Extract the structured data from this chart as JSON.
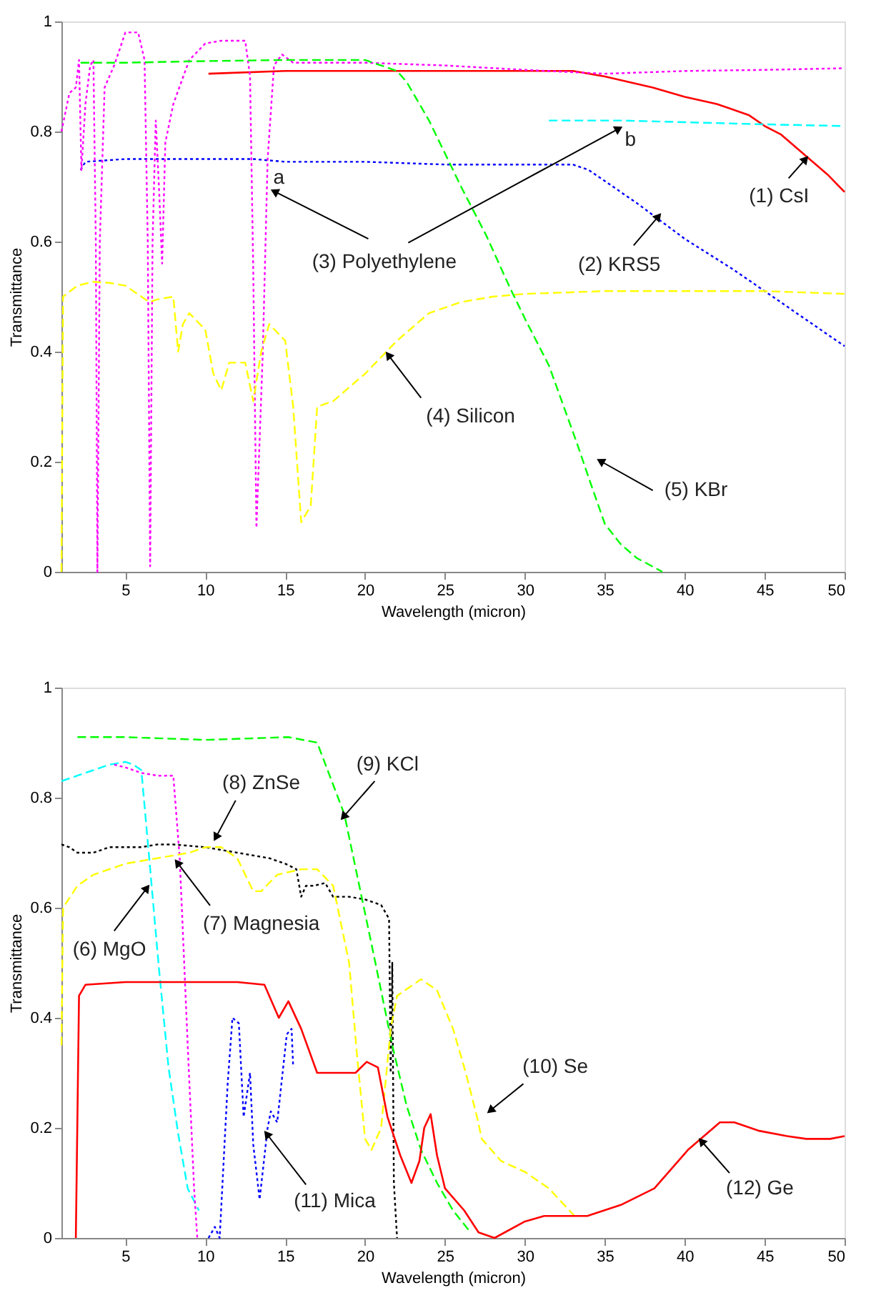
{
  "chart_data": [
    {
      "type": "line",
      "xlabel": "Wavelength (micron)",
      "ylabel": "Transmittance",
      "xlim": [
        1,
        50
      ],
      "ylim": [
        0,
        1
      ],
      "xticks": [
        5,
        10,
        15,
        20,
        25,
        30,
        35,
        40,
        45,
        50
      ],
      "yticks": [
        0,
        0.2,
        0.4,
        0.6,
        0.8,
        1
      ],
      "grid": false,
      "series": [
        {
          "color": "#ff0000",
          "line_style": "solid",
          "x": [
            10.2,
            15,
            33,
            35,
            38,
            40,
            42,
            44,
            45,
            46,
            47,
            48,
            49,
            50
          ],
          "values": [
            0.905,
            0.91,
            0.91,
            0.9,
            0.88,
            0.863,
            0.85,
            0.83,
            0.81,
            0.795,
            0.77,
            0.745,
            0.72,
            0.69
          ]
        },
        {
          "color": "#0000ff",
          "line_style": "dotted",
          "x": [
            2.2,
            2.5,
            5,
            8,
            13,
            15,
            20,
            25,
            30,
            33,
            34,
            35,
            37,
            40,
            43,
            45,
            48,
            50
          ],
          "values": [
            0.73,
            0.745,
            0.75,
            0.75,
            0.75,
            0.745,
            0.745,
            0.74,
            0.74,
            0.74,
            0.73,
            0.71,
            0.67,
            0.605,
            0.55,
            0.51,
            0.45,
            0.41
          ]
        },
        {
          "color": "#ff00ff",
          "line_style": "dotted",
          "x": [
            1,
            1.5,
            1.9,
            2.1,
            2.25,
            2.5,
            2.8,
            3.0,
            3.15,
            3.25,
            3.4,
            3.7,
            4.3,
            5,
            5.8,
            6.2,
            6.4,
            6.55,
            6.7,
            6.9,
            7.1,
            7.3,
            7.5,
            8,
            9,
            10,
            11,
            12.5,
            12.8,
            13.0,
            13.2,
            13.6,
            13.9,
            14.3,
            14.8,
            15.5,
            20,
            25,
            30,
            35,
            40,
            45,
            50
          ],
          "values": [
            0.8,
            0.87,
            0.88,
            0.93,
            0.73,
            0.85,
            0.92,
            0.93,
            0.6,
            0.0,
            0.6,
            0.88,
            0.92,
            0.98,
            0.98,
            0.93,
            0.6,
            0.01,
            0.6,
            0.82,
            0.7,
            0.56,
            0.78,
            0.85,
            0.93,
            0.96,
            0.965,
            0.965,
            0.9,
            0.55,
            0.08,
            0.4,
            0.75,
            0.92,
            0.94,
            0.925,
            0.925,
            0.92,
            0.912,
            0.905,
            0.91,
            0.912,
            0.915
          ]
        },
        {
          "color": "#00ffff",
          "line_style": "dashed",
          "x": [
            31.5,
            36,
            45,
            50
          ],
          "values": [
            0.82,
            0.82,
            0.813,
            0.81
          ]
        },
        {
          "color": "#ffff00",
          "line_style": "dashed",
          "x": [
            1,
            1.1,
            2,
            3,
            4,
            5,
            6,
            6.5,
            7,
            8,
            8.3,
            8.6,
            9,
            10,
            10.5,
            11,
            11.5,
            12.5,
            13,
            13.5,
            14,
            15,
            15.5,
            16,
            16.6,
            17,
            18,
            20,
            22,
            24,
            26,
            28,
            30,
            35,
            40,
            45,
            50
          ],
          "values": [
            0,
            0.5,
            0.52,
            0.527,
            0.525,
            0.52,
            0.5,
            0.49,
            0.495,
            0.5,
            0.4,
            0.45,
            0.47,
            0.44,
            0.36,
            0.33,
            0.38,
            0.38,
            0.31,
            0.4,
            0.45,
            0.42,
            0.3,
            0.09,
            0.12,
            0.3,
            0.31,
            0.36,
            0.42,
            0.47,
            0.49,
            0.5,
            0.505,
            0.51,
            0.51,
            0.51,
            0.505
          ]
        },
        {
          "color": "#00ff00",
          "line_style": "dashed",
          "x": [
            2.2,
            5,
            10,
            15,
            20,
            22,
            22.6,
            24,
            26,
            27.6,
            29,
            30,
            31.5,
            33.3,
            34,
            35,
            36,
            37,
            38.6
          ],
          "values": [
            0.925,
            0.925,
            0.928,
            0.93,
            0.93,
            0.91,
            0.89,
            0.82,
            0.7,
            0.61,
            0.52,
            0.46,
            0.375,
            0.23,
            0.17,
            0.087,
            0.05,
            0.025,
            0
          ]
        }
      ],
      "annotations": [
        {
          "text": "(1) CsI",
          "x": 47.5,
          "y": 0.748
        },
        {
          "text": "(2) KRS5",
          "x": 38.3,
          "y": 0.644
        },
        {
          "text": "(3) Polyethylene",
          "x": 14.4,
          "y": 0.69
        },
        "a",
        "b",
        {
          "text": "(4) Silicon",
          "x": 21.5,
          "y": 0.392
        },
        {
          "text": "(5) KBr",
          "x": 34.8,
          "y": 0.2
        }
      ]
    },
    {
      "type": "line",
      "xlabel": "Wavelength (micron)",
      "ylabel": "Transmittance",
      "xlim": [
        1,
        50
      ],
      "ylim": [
        0,
        1
      ],
      "xticks": [
        5,
        10,
        15,
        20,
        25,
        30,
        35,
        40,
        45,
        50
      ],
      "yticks": [
        0,
        0.2,
        0.4,
        0.6,
        0.8,
        1
      ],
      "grid": false,
      "series": [
        {
          "color": "#00ffff",
          "line_style": "dashed",
          "x": [
            1,
            2,
            3,
            4,
            5,
            5.5,
            6,
            6.4,
            7.1,
            7.7,
            8.3,
            8.9,
            9.6
          ],
          "values": [
            0.83,
            0.84,
            0.85,
            0.86,
            0.865,
            0.86,
            0.85,
            0.72,
            0.49,
            0.31,
            0.19,
            0.09,
            0.05
          ]
        },
        {
          "color": "#ff00ff",
          "line_style": "dotted",
          "x": [
            4.3,
            5,
            6,
            7,
            8,
            8.4,
            8.9,
            9.3,
            9.5
          ],
          "values": [
            0.86,
            0.855,
            0.845,
            0.84,
            0.84,
            0.69,
            0.35,
            0.09,
            0
          ]
        },
        {
          "color": "#000000",
          "line_style": "dotted",
          "x": [
            1,
            1.5,
            2,
            3,
            4,
            5,
            6,
            7,
            8,
            10,
            12,
            14,
            15,
            15.7,
            16,
            16.3,
            16.8,
            17.5,
            18,
            19,
            20,
            21,
            21.5,
            21.6,
            21.7,
            21.8,
            22
          ],
          "values": [
            0.715,
            0.71,
            0.7,
            0.7,
            0.71,
            0.71,
            0.71,
            0.715,
            0.715,
            0.71,
            0.7,
            0.69,
            0.68,
            0.67,
            0.62,
            0.64,
            0.64,
            0.645,
            0.62,
            0.62,
            0.615,
            0.605,
            0.58,
            0.3,
            0.5,
            0.1,
            0
          ]
        },
        {
          "color": "#00ff00",
          "line_style": "dashed",
          "x": [
            2,
            5,
            10,
            15.2,
            17,
            18.7,
            20.5,
            21.7,
            22.6,
            23.5,
            24.5,
            25.5,
            26.6
          ],
          "values": [
            0.91,
            0.91,
            0.905,
            0.91,
            0.9,
            0.77,
            0.52,
            0.35,
            0.24,
            0.16,
            0.1,
            0.05,
            0.01
          ]
        },
        {
          "color": "#ffff00",
          "line_style": "dashed",
          "x": [
            1,
            1.1,
            2,
            3,
            5,
            7,
            9,
            10,
            11,
            12,
            12.5,
            13,
            13.5,
            14.5,
            16,
            17,
            18,
            19,
            19.5,
            20,
            20.4,
            21,
            21.6,
            22,
            23.5,
            24.5,
            25.5,
            26.3,
            27,
            27.3,
            28.5,
            30,
            31.5,
            33.1
          ],
          "values": [
            0.35,
            0.6,
            0.64,
            0.66,
            0.68,
            0.69,
            0.7,
            0.71,
            0.71,
            0.69,
            0.66,
            0.63,
            0.63,
            0.66,
            0.67,
            0.67,
            0.64,
            0.5,
            0.33,
            0.18,
            0.16,
            0.2,
            0.38,
            0.44,
            0.47,
            0.45,
            0.38,
            0.3,
            0.22,
            0.18,
            0.14,
            0.12,
            0.09,
            0.04
          ]
        },
        {
          "color": "#0000ff",
          "line_style": "dotted",
          "x": [
            10.2,
            10.6,
            10.9,
            11.4,
            11.7,
            12.1,
            12.4,
            12.8,
            13.0,
            13.4,
            13.9,
            14.1,
            14.5,
            15.1,
            15.4,
            15.5
          ],
          "values": [
            0,
            0.02,
            0,
            0.28,
            0.4,
            0.39,
            0.22,
            0.3,
            0.17,
            0.07,
            0.2,
            0.23,
            0.21,
            0.37,
            0.38,
            0.31
          ]
        },
        {
          "color": "#ff0000",
          "line_style": "solid",
          "x": [
            1.9,
            2.1,
            2.5,
            5,
            10,
            12,
            13.7,
            14.6,
            15.2,
            16,
            17,
            18,
            19.4,
            20.1,
            20.8,
            21.4,
            22.2,
            22.9,
            23.4,
            23.7,
            24.1,
            24.5,
            25,
            26.2,
            27.1,
            28.1,
            30,
            31.2,
            33.9,
            36,
            38.1,
            40.2,
            42.2,
            43.1,
            44.6,
            46.4,
            47.6,
            49.1,
            50
          ],
          "values": [
            0,
            0.44,
            0.46,
            0.465,
            0.465,
            0.465,
            0.46,
            0.4,
            0.43,
            0.38,
            0.3,
            0.3,
            0.3,
            0.32,
            0.31,
            0.22,
            0.15,
            0.1,
            0.14,
            0.2,
            0.225,
            0.15,
            0.09,
            0.05,
            0.01,
            0,
            0.03,
            0.04,
            0.04,
            0.06,
            0.09,
            0.16,
            0.21,
            0.21,
            0.195,
            0.185,
            0.18,
            0.18,
            0.185
          ]
        }
      ],
      "annotations": [
        {
          "text": "(6) MgO",
          "x": 6.3,
          "y": 0.634
        },
        {
          "text": "(7) Magnesia",
          "x": 8.3,
          "y": 0.68
        },
        {
          "text": "(8) ZnSe",
          "x": 10.7,
          "y": 0.73
        },
        {
          "text": "(9) KCl",
          "x": 18.7,
          "y": 0.767
        },
        {
          "text": "(10) Se",
          "x": 27.9,
          "y": 0.233
        },
        {
          "text": "(11) Mica",
          "x": 13.9,
          "y": 0.187
        },
        {
          "text": "(12) Ge",
          "x": 41.1,
          "y": 0.174
        }
      ]
    }
  ]
}
